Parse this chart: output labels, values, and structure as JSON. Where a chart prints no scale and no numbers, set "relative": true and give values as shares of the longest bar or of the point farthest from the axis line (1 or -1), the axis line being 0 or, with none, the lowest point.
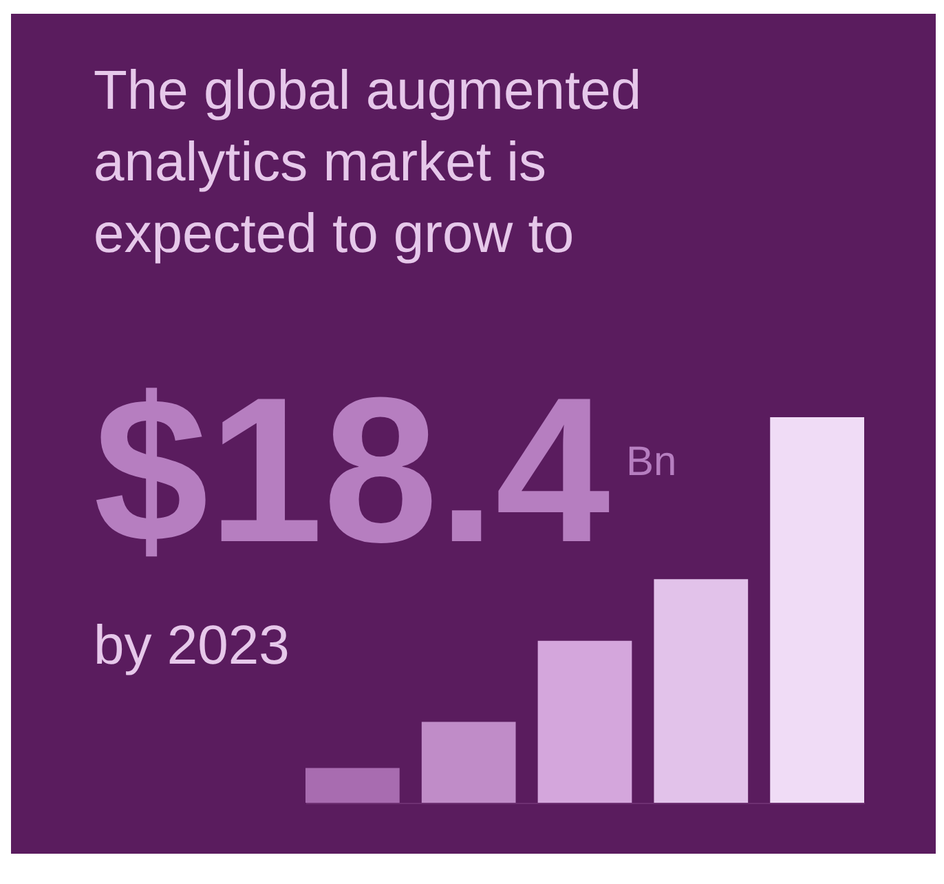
{
  "chart_data": {
    "type": "bar",
    "title": "The global augmented analytics market is expected to grow to",
    "annotations": [
      "$18.4",
      "Bn",
      "by 2023"
    ],
    "categories": [
      null,
      null,
      null,
      null,
      null
    ],
    "values": [
      0.09,
      0.21,
      0.42,
      0.58,
      1
    ],
    "colors": [
      "#a86cb0",
      "#c08cc8",
      "#d4a6dc",
      "#e2c2ea",
      "#f0dcf6"
    ],
    "relative": true
  }
}
